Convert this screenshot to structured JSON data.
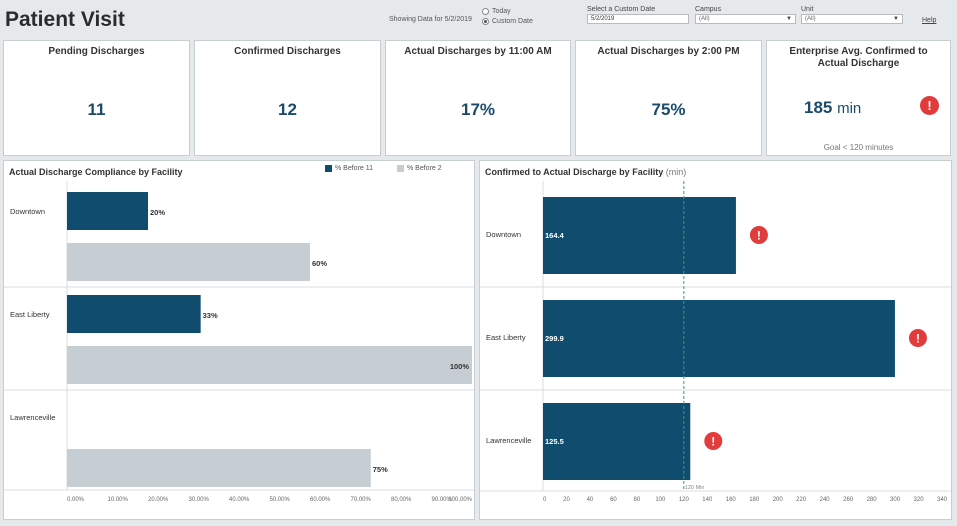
{
  "header": {
    "title": "Patient Visit",
    "showing_data": "Showing Data for 5/2/2019",
    "radio_today": "Today",
    "radio_custom": "Custom Date",
    "custom_date_label": "Select a Custom Date",
    "custom_date_value": "5/2/2019",
    "campus_label": "Campus",
    "campus_value": "(All)",
    "unit_label": "Unit",
    "unit_value": "(All)",
    "help": "Help"
  },
  "kpis": [
    {
      "title": "Pending Discharges",
      "value": "11"
    },
    {
      "title": "Confirmed Discharges",
      "value": "12"
    },
    {
      "title": "Actual Discharges by 11:00 AM",
      "value": "17%"
    },
    {
      "title": "Actual Discharges by 2:00 PM",
      "value": "75%"
    },
    {
      "title": "Enterprise Avg. Confirmed to Actual Discharge",
      "value": "185",
      "unit": "min",
      "goal": "Goal < 120 minutes"
    }
  ],
  "colors": {
    "dark": "#0f4c6e",
    "light": "#c6cdd3",
    "alert": "#e23b3b",
    "ref": "#3a9b78"
  },
  "chart_data": [
    {
      "type": "bar",
      "title": "Actual Discharge Compliance by Facility",
      "categories": [
        "Downtown",
        "East Liberty",
        "Lawrenceville"
      ],
      "series": [
        {
          "name": "% Before 11",
          "values": [
            20,
            33,
            null
          ]
        },
        {
          "name": "% Before 2",
          "values": [
            60,
            100,
            75
          ]
        }
      ],
      "value_labels": [
        [
          "20%",
          "60%"
        ],
        [
          "33%",
          "100%"
        ],
        [
          null,
          "75%"
        ]
      ],
      "xlim": [
        0,
        100
      ],
      "xticks": [
        "0.00%",
        "10.00%",
        "20.00%",
        "30.00%",
        "40.00%",
        "50.00%",
        "60.00%",
        "70.00%",
        "80.00%",
        "90.00%",
        "100.00%"
      ],
      "legend": "top"
    },
    {
      "type": "bar",
      "title": "Confirmed to Actual Discharge by Facility",
      "title_unit": "(min)",
      "categories": [
        "Downtown",
        "East Liberty",
        "Lawrenceville"
      ],
      "values": [
        164.4,
        299.9,
        125.5
      ],
      "value_labels": [
        "164.4",
        "299.9",
        "125.5"
      ],
      "alert": [
        true,
        true,
        true
      ],
      "reference_line": {
        "value": 120,
        "label": "120 Min"
      },
      "xlim": [
        0,
        340
      ],
      "xticks": [
        "0",
        "20",
        "40",
        "60",
        "80",
        "100",
        "120",
        "140",
        "160",
        "180",
        "200",
        "220",
        "240",
        "260",
        "280",
        "300",
        "320",
        "340"
      ]
    }
  ]
}
